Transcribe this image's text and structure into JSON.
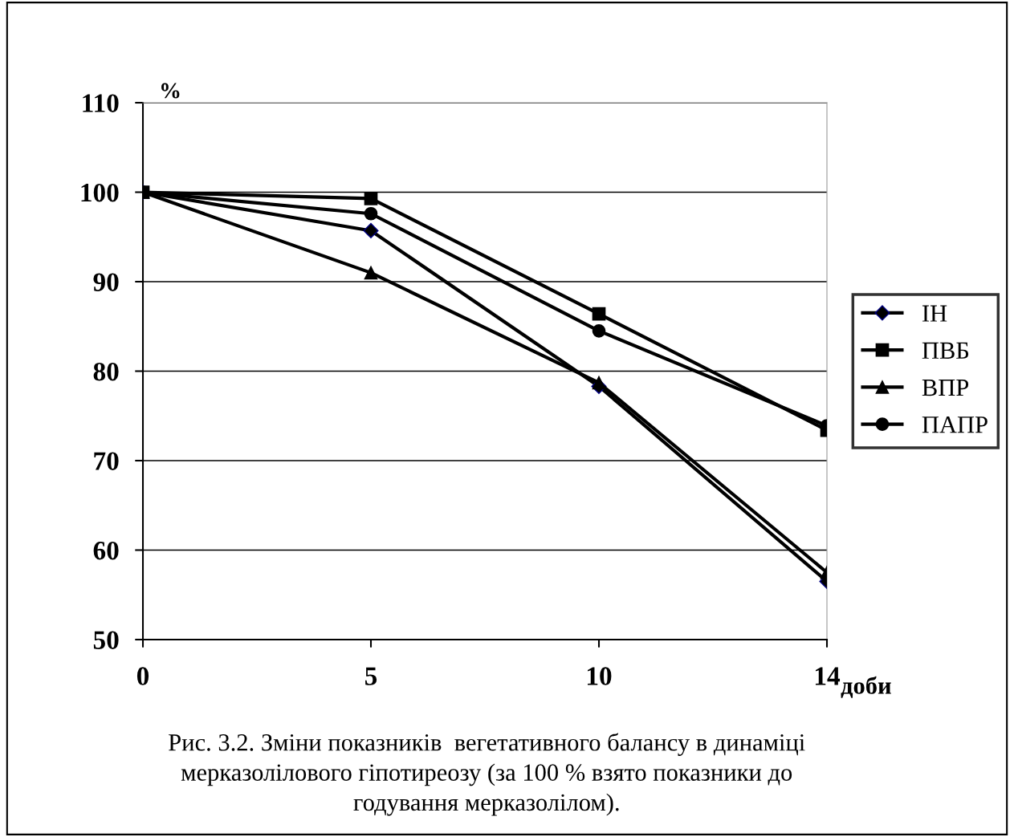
{
  "chart_data": {
    "type": "line",
    "categories": [
      "0",
      "5",
      "10",
      "14"
    ],
    "xlabel": "доби",
    "ylabel": "%",
    "ylim": [
      50,
      110
    ],
    "yticks": [
      50,
      60,
      70,
      80,
      90,
      100,
      110
    ],
    "grid": "y",
    "legend": "right",
    "series": [
      {
        "name": "ІН",
        "color": "#000000",
        "marker": "diamond",
        "values": [
          100,
          95.7,
          78.3,
          56.5
        ]
      },
      {
        "name": "ПВБ",
        "color": "#000000",
        "marker": "square",
        "values": [
          100,
          99.3,
          86.4,
          73.4
        ]
      },
      {
        "name": "ВПР",
        "color": "#000000",
        "marker": "triangle",
        "values": [
          100,
          91.0,
          78.7,
          57.5
        ]
      },
      {
        "name": "ПАПР",
        "color": "#000000",
        "marker": "circle",
        "values": [
          100,
          97.6,
          84.5,
          73.9
        ]
      }
    ],
    "annotations": [
      "Рис. 3.2. Зміни показників  вегетативного балансу в динаміці\nмерказолілового гіпотиреозу (за 100 % взято показники до\nгодування мерказолілом)."
    ]
  }
}
